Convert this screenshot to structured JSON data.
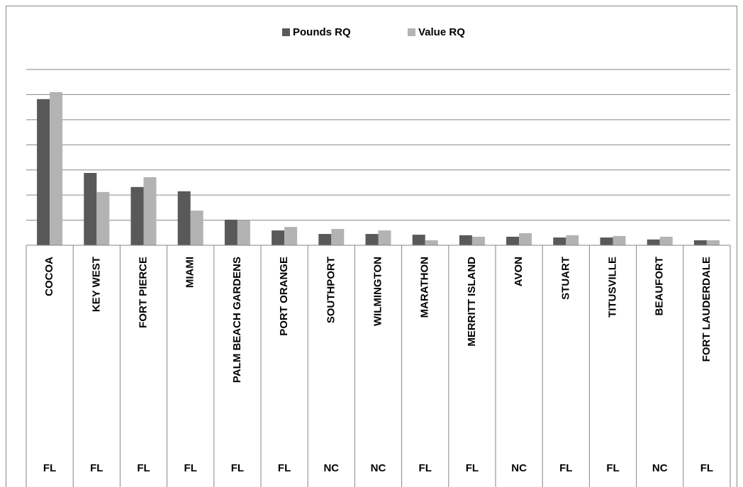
{
  "chart_data": {
    "type": "bar",
    "categories": [
      "COCOA",
      "KEY WEST",
      "FORT PIERCE",
      "MIAMI",
      "PALM BEACH GARDENS",
      "PORT ORANGE",
      "SOUTHPORT",
      "WILMINGTON",
      "MARATHON",
      "MERRITT ISLAND",
      "AVON",
      "STUART",
      "TITUSVILLE",
      "BEAUFORT",
      "FORT LAUDERDALE"
    ],
    "states": [
      "FL",
      "FL",
      "FL",
      "FL",
      "FL",
      "FL",
      "NC",
      "NC",
      "FL",
      "FL",
      "NC",
      "FL",
      "FL",
      "NC",
      "FL"
    ],
    "series": [
      {
        "name": "Pounds RQ",
        "color": "#595959",
        "values": [
          5.82,
          2.88,
          2.32,
          2.15,
          1.02,
          0.59,
          0.45,
          0.45,
          0.42,
          0.4,
          0.34,
          0.31,
          0.31,
          0.23,
          0.2
        ]
      },
      {
        "name": "Value RQ",
        "color": "#b3b3b3",
        "values": [
          6.1,
          2.12,
          2.71,
          1.38,
          0.99,
          0.73,
          0.65,
          0.59,
          0.2,
          0.34,
          0.48,
          0.4,
          0.37,
          0.34,
          0.2
        ]
      }
    ],
    "ylim": [
      0,
      7
    ],
    "yticks": [
      0,
      1,
      2,
      3,
      4,
      5,
      6,
      7
    ],
    "grid": true,
    "legend": "top"
  }
}
